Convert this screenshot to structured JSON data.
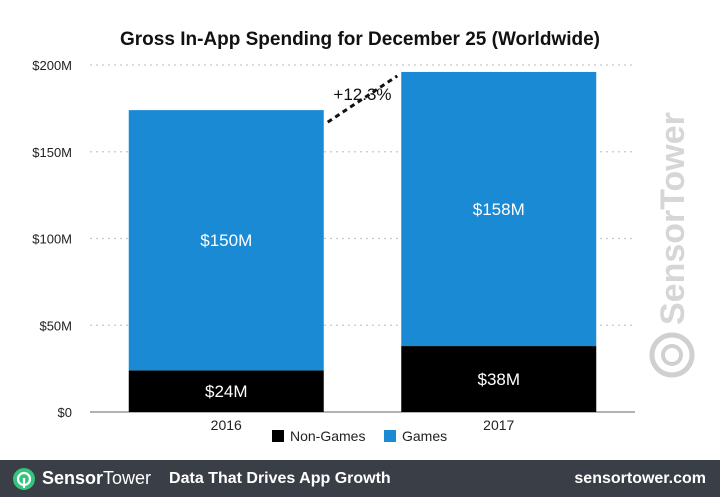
{
  "chart_data": {
    "type": "bar",
    "stacked": true,
    "title": "Gross In-App Spending for December 25 (Worldwide)",
    "categories": [
      "2016",
      "2017"
    ],
    "series": [
      {
        "name": "Non-Games",
        "values": [
          24,
          38
        ],
        "labels": [
          "$24M",
          "$38M"
        ],
        "color": "#000000"
      },
      {
        "name": "Games",
        "values": [
          150,
          158
        ],
        "labels": [
          "$150M",
          "$158M"
        ],
        "color": "#1a8ad4"
      }
    ],
    "ylim": [
      0,
      200
    ],
    "yticks": [
      0,
      50,
      100,
      150,
      200
    ],
    "ytick_labels": [
      "$0",
      "$50M",
      "$100M",
      "$150M",
      "$200M"
    ],
    "grid": true,
    "legend": "bottom",
    "annotation": "+12.3%",
    "watermark": "SensorTower"
  },
  "footer": {
    "brand_sensor": "Sensor",
    "brand_tower": "Tower",
    "tagline": "Data That Drives App Growth",
    "site": "sensortower.com"
  },
  "colors": {
    "footer_bg": "#3a3f47",
    "accent_green": "#34c47c"
  }
}
